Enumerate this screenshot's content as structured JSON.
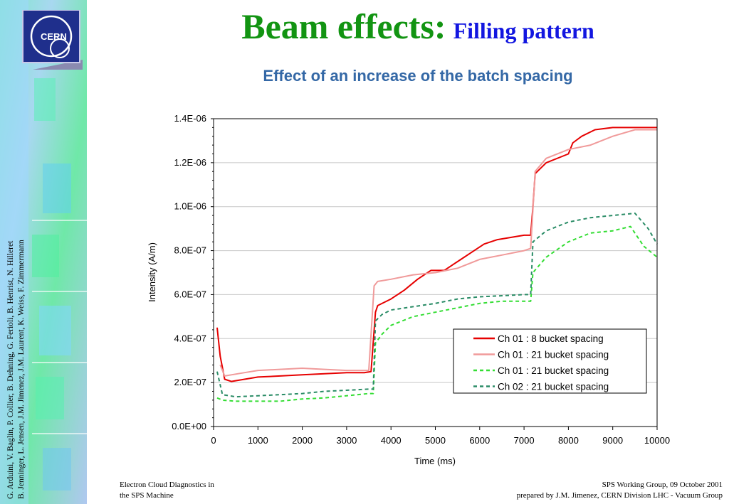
{
  "slide": {
    "title": "Beam effects:",
    "title_suffix": "Filling pattern",
    "logo_text": "CERN",
    "authors_line1": "G. Arduini, V. Baglin, P. Collier, B. Dehning, G. Ferioli, B. Henrist, N. Hilleret",
    "authors_line2": "B. Jenninger, L. Jensen, J.M. Jimenez, J.M. Laurent, K. Weiss, F. Zimmermann",
    "footer_left_line1": "Electron Cloud Diagnostics in",
    "footer_left_line2": "the SPS Machine",
    "footer_right_line1": "SPS Working Group, 09 October 2001",
    "footer_right_line2": "prepared by J.M. Jimenez, CERN Division LHC - Vacuum Group"
  },
  "chart_data": {
    "type": "line",
    "title": "Effect of an increase of the batch spacing",
    "xlabel": "Time (ms)",
    "ylabel": "Intensity (A/m)",
    "xlim": [
      0,
      10000
    ],
    "ylim": [
      0,
      1.4e-06
    ],
    "x_ticks": [
      0,
      1000,
      2000,
      3000,
      4000,
      5000,
      6000,
      7000,
      8000,
      9000,
      10000
    ],
    "x_tick_labels": [
      "0",
      "1000",
      "2000",
      "3000",
      "4000",
      "5000",
      "6000",
      "7000",
      "8000",
      "9000",
      "10000"
    ],
    "y_ticks": [
      0,
      2e-07,
      4e-07,
      6e-07,
      8e-07,
      1e-06,
      1.2e-06,
      1.4e-06
    ],
    "y_tick_labels": [
      "0.0E+00",
      "2.0E-07",
      "4.0E-07",
      "6.0E-07",
      "8.0E-07",
      "1.0E-06",
      "1.2E-06",
      "1.4E-06"
    ],
    "grid": "horizontal",
    "legend_position": "bottom-right",
    "series": [
      {
        "name": "Ch 01 :  8 bucket spacing",
        "color": "#e60000",
        "style": "solid",
        "points": [
          [
            80,
            4.5e-07
          ],
          [
            150,
            3.2e-07
          ],
          [
            250,
            2.15e-07
          ],
          [
            400,
            2.05e-07
          ],
          [
            700,
            2.15e-07
          ],
          [
            1000,
            2.25e-07
          ],
          [
            1500,
            2.3e-07
          ],
          [
            2000,
            2.35e-07
          ],
          [
            2500,
            2.4e-07
          ],
          [
            3000,
            2.45e-07
          ],
          [
            3400,
            2.45e-07
          ],
          [
            3550,
            2.5e-07
          ],
          [
            3650,
            5.2e-07
          ],
          [
            3700,
            5.5e-07
          ],
          [
            4000,
            5.8e-07
          ],
          [
            4300,
            6.2e-07
          ],
          [
            4600,
            6.7e-07
          ],
          [
            4900,
            7.1e-07
          ],
          [
            5200,
            7.1e-07
          ],
          [
            5500,
            7.5e-07
          ],
          [
            5800,
            7.9e-07
          ],
          [
            6100,
            8.3e-07
          ],
          [
            6400,
            8.5e-07
          ],
          [
            6700,
            8.6e-07
          ],
          [
            7000,
            8.7e-07
          ],
          [
            7150,
            8.7e-07
          ],
          [
            7200,
            1e-06
          ],
          [
            7250,
            1.15e-06
          ],
          [
            7500,
            1.2e-06
          ],
          [
            8000,
            1.24e-06
          ],
          [
            8100,
            1.29e-06
          ],
          [
            8300,
            1.32e-06
          ],
          [
            8600,
            1.35e-06
          ],
          [
            9000,
            1.36e-06
          ],
          [
            9500,
            1.36e-06
          ],
          [
            10000,
            1.36e-06
          ]
        ]
      },
      {
        "name": "Ch 01 : 21 bucket spacing",
        "color": "#f09a9a",
        "style": "solid",
        "points": [
          [
            150,
            2.8e-07
          ],
          [
            250,
            2.3e-07
          ],
          [
            400,
            2.35e-07
          ],
          [
            700,
            2.45e-07
          ],
          [
            1000,
            2.55e-07
          ],
          [
            1500,
            2.6e-07
          ],
          [
            2000,
            2.65e-07
          ],
          [
            2500,
            2.6e-07
          ],
          [
            3000,
            2.55e-07
          ],
          [
            3500,
            2.55e-07
          ],
          [
            3620,
            6.4e-07
          ],
          [
            3700,
            6.6e-07
          ],
          [
            4000,
            6.7e-07
          ],
          [
            4500,
            6.9e-07
          ],
          [
            5000,
            7e-07
          ],
          [
            5500,
            7.2e-07
          ],
          [
            6000,
            7.6e-07
          ],
          [
            6500,
            7.8e-07
          ],
          [
            7000,
            8e-07
          ],
          [
            7150,
            8.1e-07
          ],
          [
            7250,
            1.16e-06
          ],
          [
            7500,
            1.22e-06
          ],
          [
            8000,
            1.26e-06
          ],
          [
            8500,
            1.28e-06
          ],
          [
            9000,
            1.32e-06
          ],
          [
            9500,
            1.35e-06
          ],
          [
            10000,
            1.35e-06
          ]
        ]
      },
      {
        "name": "Ch 01 : 21 bucket spacing",
        "color": "#33dd33",
        "style": "dashed",
        "points": [
          [
            80,
            1.3e-07
          ],
          [
            200,
            1.2e-07
          ],
          [
            500,
            1.15e-07
          ],
          [
            1000,
            1.15e-07
          ],
          [
            1500,
            1.15e-07
          ],
          [
            2000,
            1.25e-07
          ],
          [
            2500,
            1.3e-07
          ],
          [
            3000,
            1.4e-07
          ],
          [
            3500,
            1.5e-07
          ],
          [
            3600,
            1.5e-07
          ],
          [
            3650,
            3.8e-07
          ],
          [
            3800,
            4.2e-07
          ],
          [
            4000,
            4.6e-07
          ],
          [
            4500,
            5e-07
          ],
          [
            5000,
            5.2e-07
          ],
          [
            5500,
            5.4e-07
          ],
          [
            6000,
            5.6e-07
          ],
          [
            6500,
            5.7e-07
          ],
          [
            7000,
            5.7e-07
          ],
          [
            7150,
            5.7e-07
          ],
          [
            7200,
            7e-07
          ],
          [
            7500,
            7.7e-07
          ],
          [
            8000,
            8.4e-07
          ],
          [
            8500,
            8.8e-07
          ],
          [
            9000,
            8.9e-07
          ],
          [
            9400,
            9.1e-07
          ],
          [
            9700,
            8.2e-07
          ],
          [
            10000,
            7.7e-07
          ]
        ]
      },
      {
        "name": "Ch 02 : 21 bucket spacing",
        "color": "#2a8c66",
        "style": "dashed",
        "points": [
          [
            80,
            2.5e-07
          ],
          [
            200,
            1.45e-07
          ],
          [
            500,
            1.35e-07
          ],
          [
            1000,
            1.4e-07
          ],
          [
            1500,
            1.45e-07
          ],
          [
            2000,
            1.5e-07
          ],
          [
            2500,
            1.6e-07
          ],
          [
            3000,
            1.65e-07
          ],
          [
            3500,
            1.7e-07
          ],
          [
            3600,
            1.7e-07
          ],
          [
            3650,
            4.8e-07
          ],
          [
            3800,
            5.1e-07
          ],
          [
            4000,
            5.3e-07
          ],
          [
            4500,
            5.45e-07
          ],
          [
            5000,
            5.6e-07
          ],
          [
            5500,
            5.8e-07
          ],
          [
            6000,
            5.9e-07
          ],
          [
            6500,
            5.95e-07
          ],
          [
            7000,
            6e-07
          ],
          [
            7150,
            6e-07
          ],
          [
            7200,
            8.4e-07
          ],
          [
            7500,
            8.9e-07
          ],
          [
            8000,
            9.3e-07
          ],
          [
            8500,
            9.5e-07
          ],
          [
            9000,
            9.6e-07
          ],
          [
            9500,
            9.7e-07
          ],
          [
            9800,
            9e-07
          ],
          [
            10000,
            8.3e-07
          ]
        ]
      }
    ]
  }
}
